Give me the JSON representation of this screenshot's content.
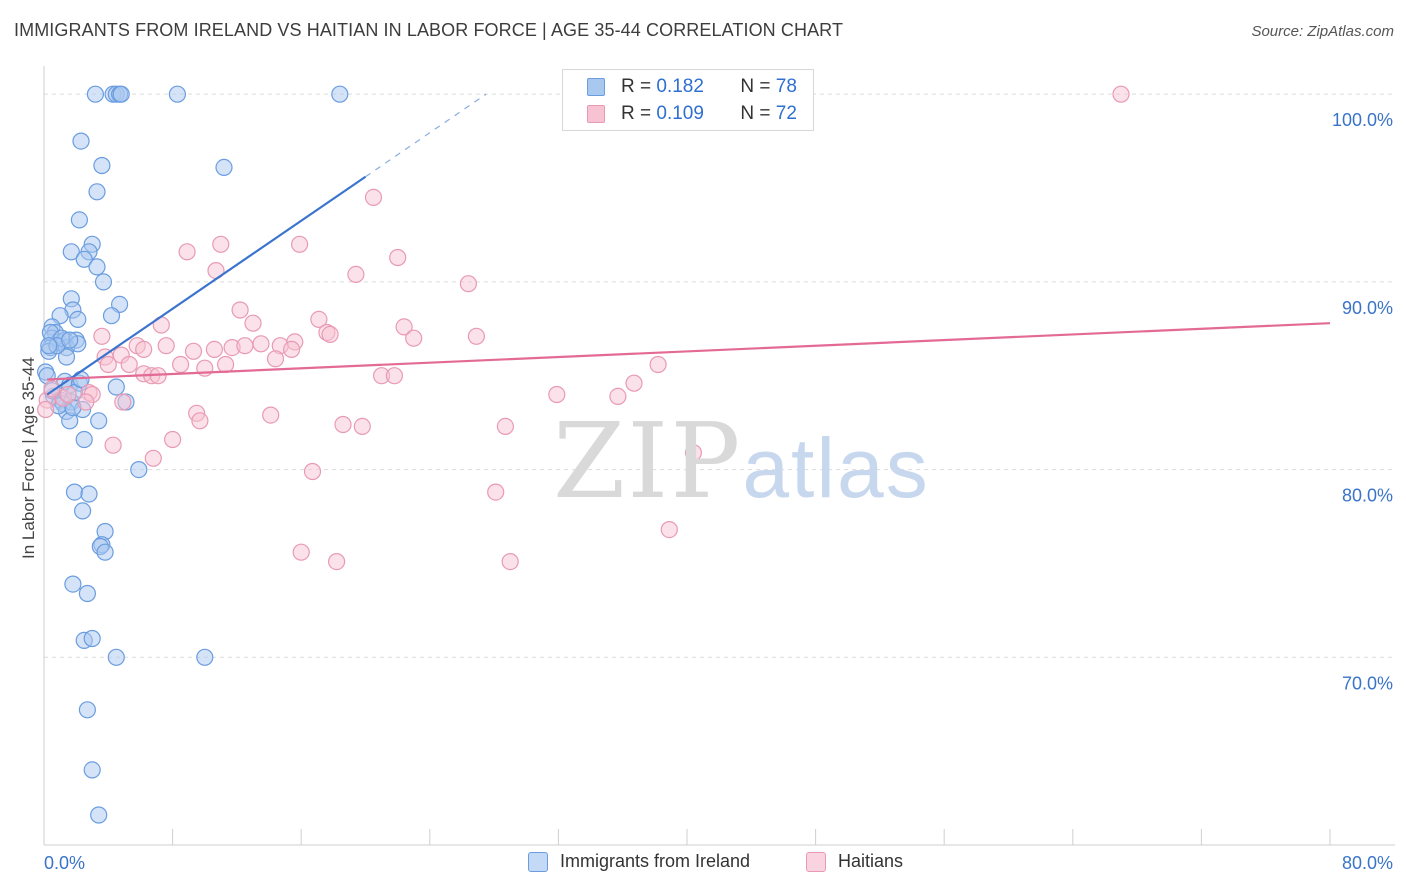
{
  "header": {
    "title": "IMMIGRANTS FROM IRELAND VS HAITIAN IN LABOR FORCE | AGE 35-44 CORRELATION CHART",
    "source": "Source: ZipAtlas.com"
  },
  "legend": {
    "r_label": "R =",
    "n_label": "N =",
    "rows": [
      {
        "r": "0.182",
        "n": "78",
        "color": "#a9c8f0",
        "border": "#6a9de0"
      },
      {
        "r": "0.109",
        "n": "72",
        "color": "#f7c3d3",
        "border": "#e89ab4"
      }
    ]
  },
  "watermark": {
    "zip": "ZIP",
    "atlas": "atlas"
  },
  "chart_data": {
    "type": "scatter",
    "title": "IMMIGRANTS FROM IRELAND VS HAITIAN IN LABOR FORCE | AGE 35-44 CORRELATION CHART",
    "xlabel": "",
    "ylabel": "In Labor Force | Age 35-44",
    "xlim": [
      0,
      80
    ],
    "ylim": [
      60,
      101.5
    ],
    "x_tick_labels": [
      "0.0%",
      "80.0%"
    ],
    "y_ticks": [
      {
        "value": 100,
        "label": "100.0%"
      },
      {
        "value": 90,
        "label": "90.0%"
      },
      {
        "value": 80,
        "label": "80.0%"
      },
      {
        "value": 70,
        "label": "70.0%"
      }
    ],
    "grid": true,
    "series": [
      {
        "name": "Immigrants from Ireland",
        "color": "#6a9de0",
        "fill": "#a9c8f0",
        "R": 0.182,
        "N": 78,
        "trend": {
          "x0": 0.2,
          "y0": 84.0,
          "x1": 20.0,
          "y1": 95.6,
          "dash_to_x": 27.5,
          "dash_to_y": 100.0,
          "color": "#3a74cf"
        },
        "points": [
          [
            3.2,
            100
          ],
          [
            4.3,
            100
          ],
          [
            4.5,
            100
          ],
          [
            4.7,
            100
          ],
          [
            4.8,
            100
          ],
          [
            8.3,
            100
          ],
          [
            18.4,
            100
          ],
          [
            2.3,
            97.5
          ],
          [
            3.6,
            96.2
          ],
          [
            11.2,
            96.1
          ],
          [
            3.3,
            94.8
          ],
          [
            2.2,
            93.3
          ],
          [
            3.0,
            92.0
          ],
          [
            1.7,
            91.6
          ],
          [
            2.8,
            91.6
          ],
          [
            2.5,
            91.2
          ],
          [
            3.3,
            90.8
          ],
          [
            3.7,
            90.0
          ],
          [
            1.7,
            89.1
          ],
          [
            4.7,
            88.8
          ],
          [
            1.8,
            88.5
          ],
          [
            1.0,
            88.2
          ],
          [
            4.2,
            88.2
          ],
          [
            2.1,
            88.0
          ],
          [
            0.5,
            87.6
          ],
          [
            0.7,
            87.3
          ],
          [
            0.5,
            87.0
          ],
          [
            0.9,
            86.8
          ],
          [
            1.3,
            86.9
          ],
          [
            2.0,
            86.9
          ],
          [
            0.4,
            86.5
          ],
          [
            1.4,
            86.5
          ],
          [
            0.3,
            86.3
          ],
          [
            1.4,
            86.0
          ],
          [
            0.1,
            85.2
          ],
          [
            1.3,
            84.7
          ],
          [
            1.6,
            84.5
          ],
          [
            2.2,
            84.6
          ],
          [
            4.5,
            84.4
          ],
          [
            0.6,
            83.9
          ],
          [
            1.0,
            83.7
          ],
          [
            1.2,
            83.5
          ],
          [
            1.7,
            83.6
          ],
          [
            5.1,
            83.6
          ],
          [
            1.4,
            83.1
          ],
          [
            2.4,
            83.2
          ],
          [
            1.6,
            82.6
          ],
          [
            3.4,
            82.6
          ],
          [
            2.5,
            81.6
          ],
          [
            5.9,
            80.0
          ],
          [
            1.9,
            78.8
          ],
          [
            2.8,
            78.7
          ],
          [
            2.4,
            77.8
          ],
          [
            3.8,
            76.7
          ],
          [
            3.6,
            76.0
          ],
          [
            3.5,
            75.9
          ],
          [
            3.8,
            75.6
          ],
          [
            1.8,
            73.9
          ],
          [
            2.7,
            73.4
          ],
          [
            2.5,
            70.9
          ],
          [
            3.0,
            71.0
          ],
          [
            4.5,
            70.0
          ],
          [
            10.0,
            70.0
          ],
          [
            2.7,
            67.2
          ],
          [
            3.0,
            64.0
          ],
          [
            3.4,
            61.6
          ],
          [
            0.4,
            87.3
          ],
          [
            1.1,
            87.0
          ],
          [
            0.8,
            86.6
          ],
          [
            2.1,
            86.7
          ],
          [
            0.2,
            85.0
          ],
          [
            0.5,
            84.2
          ],
          [
            1.9,
            84.1
          ],
          [
            0.9,
            83.4
          ],
          [
            1.8,
            83.3
          ],
          [
            2.3,
            84.8
          ],
          [
            0.3,
            86.6
          ],
          [
            1.6,
            86.9
          ]
        ]
      },
      {
        "name": "Haitians",
        "color": "#e89ab4",
        "fill": "#f7c3d3",
        "R": 0.109,
        "N": 72,
        "trend": {
          "x0": 0.2,
          "y0": 84.8,
          "x1": 80.0,
          "y1": 87.8,
          "color": "#e36a95"
        },
        "points": [
          [
            67.0,
            100
          ],
          [
            20.5,
            94.5
          ],
          [
            11.0,
            92.0
          ],
          [
            15.9,
            92.0
          ],
          [
            8.9,
            91.6
          ],
          [
            22.0,
            91.3
          ],
          [
            10.7,
            90.6
          ],
          [
            19.4,
            90.4
          ],
          [
            26.4,
            89.9
          ],
          [
            12.2,
            88.5
          ],
          [
            17.1,
            88.0
          ],
          [
            13.0,
            87.8
          ],
          [
            7.3,
            87.7
          ],
          [
            22.4,
            87.6
          ],
          [
            17.6,
            87.3
          ],
          [
            17.8,
            87.2
          ],
          [
            26.9,
            87.1
          ],
          [
            3.6,
            87.1
          ],
          [
            5.8,
            86.6
          ],
          [
            7.6,
            86.6
          ],
          [
            11.7,
            86.5
          ],
          [
            12.5,
            86.6
          ],
          [
            13.5,
            86.7
          ],
          [
            14.7,
            86.6
          ],
          [
            15.6,
            86.8
          ],
          [
            15.4,
            86.4
          ],
          [
            9.3,
            86.3
          ],
          [
            4.8,
            86.1
          ],
          [
            3.8,
            86.0
          ],
          [
            14.4,
            85.9
          ],
          [
            11.3,
            85.6
          ],
          [
            8.5,
            85.6
          ],
          [
            10.0,
            85.4
          ],
          [
            5.3,
            85.6
          ],
          [
            6.2,
            85.1
          ],
          [
            6.7,
            85.0
          ],
          [
            7.1,
            85.0
          ],
          [
            21.0,
            85.0
          ],
          [
            21.8,
            85.0
          ],
          [
            38.2,
            85.6
          ],
          [
            36.7,
            84.6
          ],
          [
            2.8,
            84.1
          ],
          [
            3.0,
            84.0
          ],
          [
            31.9,
            84.0
          ],
          [
            35.7,
            83.9
          ],
          [
            4.9,
            83.6
          ],
          [
            0.2,
            83.7
          ],
          [
            1.2,
            83.8
          ],
          [
            2.6,
            83.6
          ],
          [
            9.5,
            83.0
          ],
          [
            14.1,
            82.9
          ],
          [
            9.7,
            82.6
          ],
          [
            18.6,
            82.4
          ],
          [
            19.8,
            82.3
          ],
          [
            28.7,
            82.3
          ],
          [
            4.3,
            81.3
          ],
          [
            8.0,
            81.6
          ],
          [
            6.8,
            80.6
          ],
          [
            40.4,
            80.9
          ],
          [
            16.7,
            79.9
          ],
          [
            28.1,
            78.8
          ],
          [
            38.9,
            76.8
          ],
          [
            16.0,
            75.6
          ],
          [
            18.2,
            75.1
          ],
          [
            29.0,
            75.1
          ],
          [
            0.1,
            83.2
          ],
          [
            1.5,
            84.0
          ],
          [
            0.5,
            84.3
          ],
          [
            23.0,
            87.0
          ],
          [
            10.6,
            86.4
          ],
          [
            4.0,
            85.6
          ],
          [
            6.2,
            86.4
          ]
        ]
      }
    ],
    "legend_entries": [
      "Immigrants from Ireland",
      "Haitians"
    ]
  }
}
